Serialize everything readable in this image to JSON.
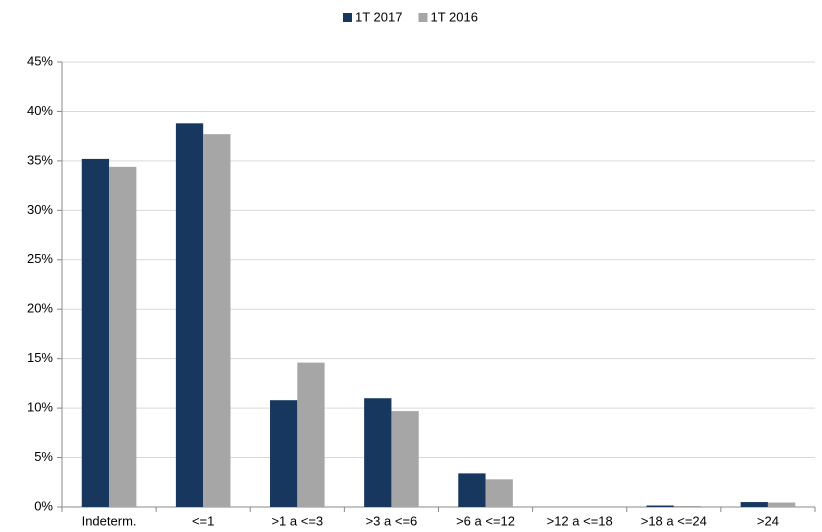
{
  "chart_data": {
    "type": "bar",
    "categories": [
      "Indeterm.",
      "<=1",
      ">1 a <=3",
      ">3 a <=6",
      ">6 a <=12",
      ">12 a <=18",
      ">18 a <=24",
      ">24"
    ],
    "series": [
      {
        "name": "1T 2017",
        "color": "#17375e",
        "values": [
          35.2,
          38.8,
          10.8,
          11.0,
          3.4,
          0,
          0.15,
          0.5
        ]
      },
      {
        "name": "1T 2016",
        "color": "#a6a6a6",
        "values": [
          34.4,
          37.7,
          14.6,
          9.7,
          2.8,
          0,
          0.1,
          0.45
        ]
      }
    ],
    "ylim": [
      0,
      45
    ],
    "yticks": [
      {
        "value": 0,
        "label": "0%"
      },
      {
        "value": 5,
        "label": "5%"
      },
      {
        "value": 10,
        "label": "10%"
      },
      {
        "value": 15,
        "label": "15%"
      },
      {
        "value": 20,
        "label": "20%"
      },
      {
        "value": 25,
        "label": "25%"
      },
      {
        "value": 30,
        "label": "30%"
      },
      {
        "value": 35,
        "label": "35%"
      },
      {
        "value": 40,
        "label": "40%"
      },
      {
        "value": 45,
        "label": "45%"
      }
    ],
    "grid": true,
    "legend": "top"
  }
}
